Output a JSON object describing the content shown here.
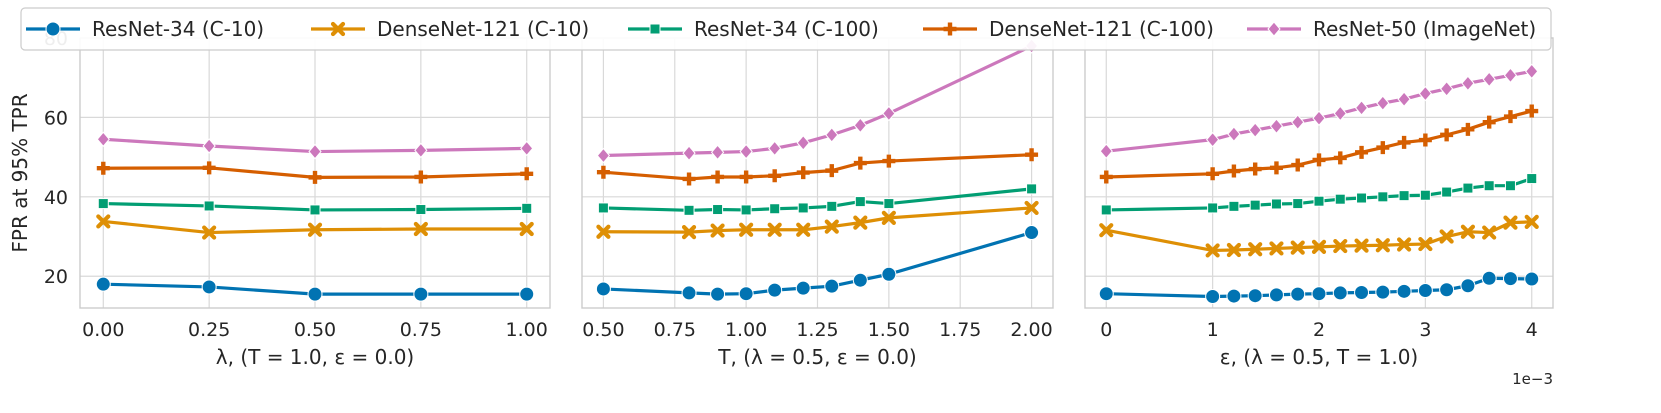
{
  "chart_data": {
    "type": "line",
    "ylabel": "FPR at 95% TPR",
    "ylim": [
      12,
      80
    ],
    "yticks": [
      20,
      40,
      60,
      80
    ],
    "grid": true,
    "legend_position": "top",
    "series_styles": [
      {
        "name": "ResNet-34 (C-10)",
        "color": "#0173b2",
        "marker": "circle"
      },
      {
        "name": "DenseNet-121 (C-10)",
        "color": "#de8f05",
        "marker": "x"
      },
      {
        "name": "ResNet-34 (C-100)",
        "color": "#029e73",
        "marker": "square"
      },
      {
        "name": "DenseNet-121 (C-100)",
        "color": "#d55e00",
        "marker": "plus"
      },
      {
        "name": "ResNet-50 (ImageNet)",
        "color": "#cc78bc",
        "marker": "diamond"
      }
    ],
    "panels": [
      {
        "xlabel": "λ, (T = 1.0, ε = 0.0)",
        "xlim": [
          -0.055,
          1.055
        ],
        "xticks": [
          0.0,
          0.25,
          0.5,
          0.75,
          1.0
        ],
        "xtick_labels": [
          "0.00",
          "0.25",
          "0.50",
          "0.75",
          "1.00"
        ],
        "offset_label": "",
        "series": [
          {
            "x": [
              0.0,
              0.25,
              0.5,
              0.75,
              1.0
            ],
            "values": [
              18.0,
              17.3,
              15.5,
              15.5,
              15.5
            ]
          },
          {
            "x": [
              0.0,
              0.25,
              0.5,
              0.75,
              1.0
            ],
            "values": [
              33.8,
              31.0,
              31.7,
              31.9,
              31.9
            ]
          },
          {
            "x": [
              0.0,
              0.25,
              0.5,
              0.75,
              1.0
            ],
            "values": [
              38.3,
              37.7,
              36.7,
              36.8,
              37.1
            ]
          },
          {
            "x": [
              0.0,
              0.25,
              0.5,
              0.75,
              1.0
            ],
            "values": [
              47.2,
              47.3,
              44.9,
              45.0,
              45.8
            ]
          },
          {
            "x": [
              0.0,
              0.25,
              0.5,
              0.75,
              1.0
            ],
            "values": [
              54.5,
              52.8,
              51.4,
              51.7,
              52.2
            ]
          }
        ]
      },
      {
        "xlabel": "T, (λ = 0.5, ε = 0.0)",
        "xlim": [
          0.425,
          2.075
        ],
        "xticks": [
          0.5,
          0.75,
          1.0,
          1.25,
          1.5,
          1.75,
          2.0
        ],
        "xtick_labels": [
          "0.50",
          "0.75",
          "1.00",
          "1.25",
          "1.50",
          "1.75",
          "2.00"
        ],
        "offset_label": "",
        "series": [
          {
            "x": [
              0.5,
              0.8,
              0.9,
              1.0,
              1.1,
              1.2,
              1.3,
              1.4,
              1.5,
              2.0
            ],
            "values": [
              16.8,
              15.8,
              15.5,
              15.6,
              16.5,
              17.0,
              17.5,
              19.0,
              20.5,
              31.0
            ]
          },
          {
            "x": [
              0.5,
              0.8,
              0.9,
              1.0,
              1.1,
              1.2,
              1.3,
              1.4,
              1.5,
              2.0
            ],
            "values": [
              31.2,
              31.1,
              31.5,
              31.7,
              31.7,
              31.7,
              32.5,
              33.5,
              34.7,
              37.2
            ]
          },
          {
            "x": [
              0.5,
              0.8,
              0.9,
              1.0,
              1.1,
              1.2,
              1.3,
              1.4,
              1.5,
              2.0
            ],
            "values": [
              37.2,
              36.6,
              36.8,
              36.7,
              37.0,
              37.2,
              37.6,
              38.8,
              38.3,
              42.0
            ]
          },
          {
            "x": [
              0.5,
              0.8,
              0.9,
              1.0,
              1.1,
              1.2,
              1.3,
              1.4,
              1.5,
              2.0
            ],
            "values": [
              46.2,
              44.5,
              45.0,
              45.0,
              45.3,
              46.1,
              46.6,
              48.5,
              49.0,
              50.6
            ]
          },
          {
            "x": [
              0.5,
              0.8,
              0.9,
              1.0,
              1.1,
              1.2,
              1.3,
              1.4,
              1.5,
              2.0
            ],
            "values": [
              50.4,
              51.0,
              51.2,
              51.4,
              52.2,
              53.6,
              55.6,
              58.0,
              61.0,
              78.0
            ]
          }
        ]
      },
      {
        "xlabel": "ε, (λ = 0.5, T = 1.0)",
        "xlim": [
          -0.2,
          4.2
        ],
        "xticks": [
          0,
          1,
          2,
          3,
          4
        ],
        "xtick_labels": [
          "0",
          "1",
          "2",
          "3",
          "4"
        ],
        "offset_label": "1e−3",
        "series": [
          {
            "x": [
              0,
              1.0,
              1.2,
              1.4,
              1.6,
              1.8,
              2.0,
              2.2,
              2.4,
              2.6,
              2.8,
              3.0,
              3.2,
              3.4,
              3.6,
              3.8,
              4.0
            ],
            "values": [
              15.6,
              14.9,
              15.0,
              15.1,
              15.3,
              15.5,
              15.6,
              15.8,
              15.9,
              16.0,
              16.2,
              16.4,
              16.6,
              17.6,
              19.5,
              19.4,
              19.3
            ]
          },
          {
            "x": [
              0,
              1.0,
              1.2,
              1.4,
              1.6,
              1.8,
              2.0,
              2.2,
              2.4,
              2.6,
              2.8,
              3.0,
              3.2,
              3.4,
              3.6,
              3.8,
              4.0
            ],
            "values": [
              31.6,
              26.5,
              26.6,
              26.8,
              27.0,
              27.2,
              27.4,
              27.6,
              27.7,
              27.8,
              28.0,
              28.1,
              30.0,
              31.2,
              31.0,
              33.5,
              33.7
            ]
          },
          {
            "x": [
              0,
              1.0,
              1.2,
              1.4,
              1.6,
              1.8,
              2.0,
              2.2,
              2.4,
              2.6,
              2.8,
              3.0,
              3.2,
              3.4,
              3.6,
              3.8,
              4.0
            ],
            "values": [
              36.7,
              37.2,
              37.6,
              37.9,
              38.2,
              38.3,
              38.9,
              39.4,
              39.7,
              40.0,
              40.3,
              40.4,
              41.2,
              42.2,
              42.8,
              42.8,
              44.6
            ]
          },
          {
            "x": [
              0,
              1.0,
              1.2,
              1.4,
              1.6,
              1.8,
              2.0,
              2.2,
              2.4,
              2.6,
              2.8,
              3.0,
              3.2,
              3.4,
              3.6,
              3.8,
              4.0
            ],
            "values": [
              45.0,
              45.8,
              46.5,
              47.0,
              47.3,
              48.0,
              49.3,
              49.8,
              51.2,
              52.4,
              53.7,
              54.3,
              55.6,
              57.0,
              58.8,
              60.2,
              61.6
            ]
          },
          {
            "x": [
              0,
              1.0,
              1.2,
              1.4,
              1.6,
              1.8,
              2.0,
              2.2,
              2.4,
              2.6,
              2.8,
              3.0,
              3.2,
              3.4,
              3.6,
              3.8,
              4.0
            ],
            "values": [
              51.5,
              54.4,
              55.8,
              56.8,
              57.8,
              58.8,
              59.8,
              61.0,
              62.4,
              63.6,
              64.6,
              66.0,
              67.2,
              68.6,
              69.6,
              70.6,
              71.6
            ]
          }
        ]
      }
    ]
  }
}
